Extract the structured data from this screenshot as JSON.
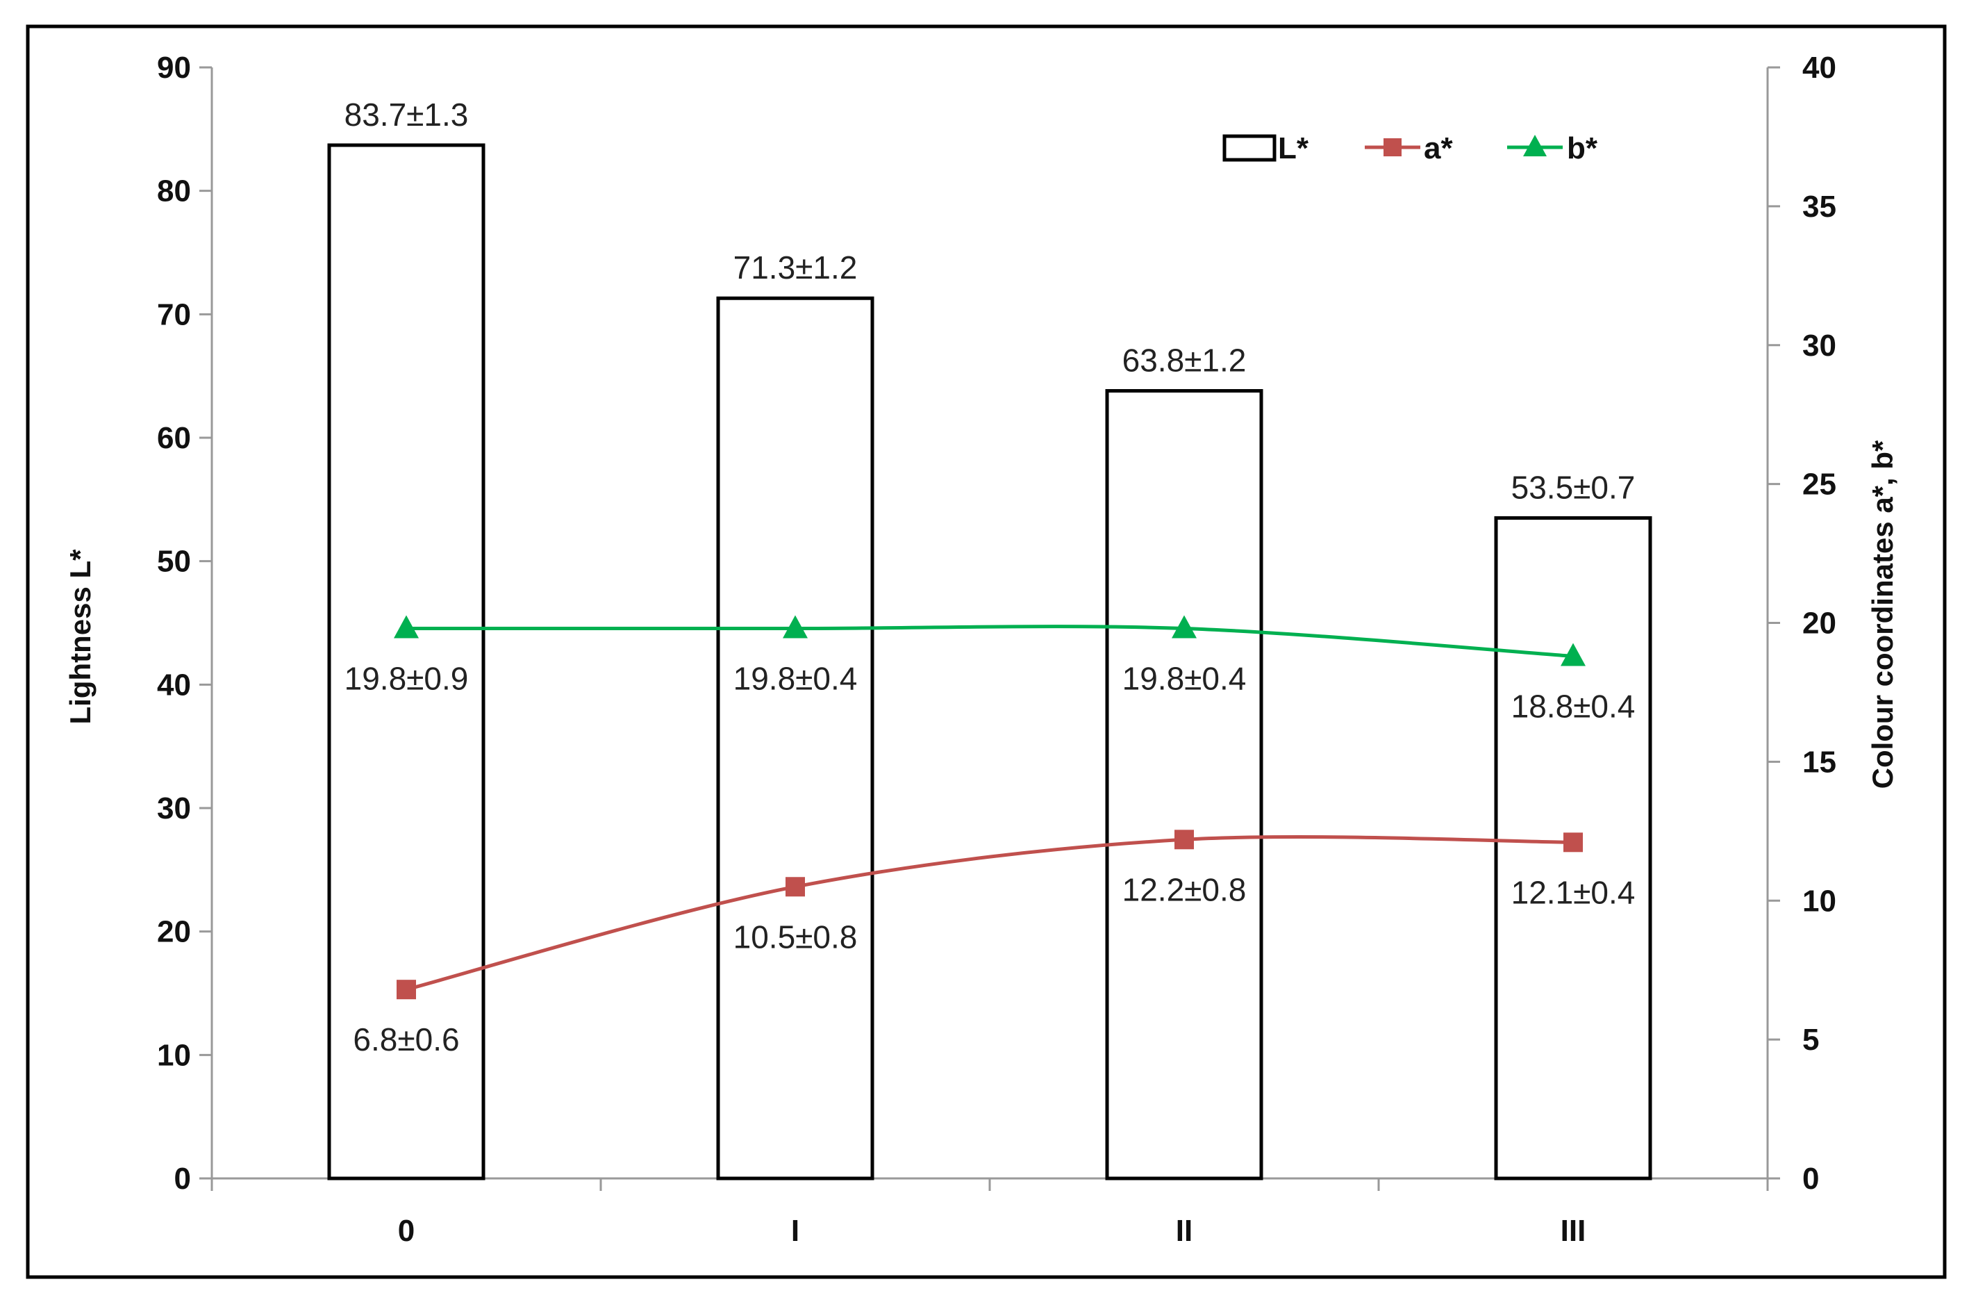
{
  "chart_data": {
    "type": "bar",
    "categories": [
      "0",
      "I",
      "II",
      "III"
    ],
    "series": [
      {
        "name": "L*",
        "kind": "bar",
        "axis": "left",
        "values": [
          83.7,
          71.3,
          63.8,
          53.5
        ],
        "labels": [
          "83.7±1.3",
          "71.3±1.2",
          "63.8±1.2",
          "53.5±0.7"
        ],
        "fill": "#ffffff",
        "stroke": "#000000"
      },
      {
        "name": "a*",
        "kind": "line",
        "axis": "right",
        "marker": "square",
        "color": "#c0504d",
        "values": [
          6.8,
          10.5,
          12.2,
          12.1
        ],
        "labels": [
          "6.8±0.6",
          "10.5±0.8",
          "12.2±0.8",
          "12.1±0.4"
        ]
      },
      {
        "name": "b*",
        "kind": "line",
        "axis": "right",
        "marker": "triangle",
        "color": "#00b050",
        "values": [
          19.8,
          19.8,
          19.8,
          18.8
        ],
        "labels": [
          "19.8±0.9",
          "19.8±0.4",
          "19.8±0.4",
          "18.8±0.4"
        ]
      }
    ],
    "ylabel_left": "Lightness  L*",
    "ylabel_right": "Colour coordinates   a*, b*",
    "ylim_left": [
      0,
      90
    ],
    "yticks_left": [
      0,
      10,
      20,
      30,
      40,
      50,
      60,
      70,
      80,
      90
    ],
    "ylim_right": [
      0,
      40
    ],
    "yticks_right": [
      0,
      5,
      10,
      15,
      20,
      25,
      30,
      35,
      40
    ],
    "grid": false,
    "legend_position": "top-right"
  }
}
